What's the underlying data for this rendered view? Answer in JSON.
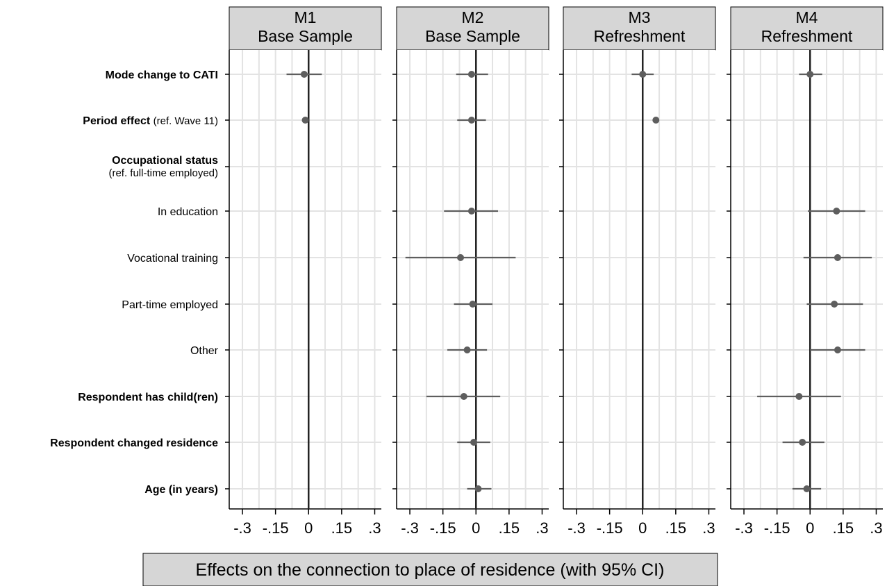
{
  "chart_data": {
    "type": "scatter",
    "subtype": "coefficient plot with 95% CI",
    "x_axis_label": "Effects on the connection to place of residence (with 95% CI)",
    "xlim": [
      -0.36,
      0.33
    ],
    "x_ticks": [
      -0.3,
      -0.15,
      0,
      0.15,
      0.3
    ],
    "x_tick_labels": [
      "-.3",
      "-.15",
      "0",
      ".15",
      ".3"
    ],
    "x_gridlines": [
      -0.3,
      -0.225,
      -0.15,
      -0.075,
      0.075,
      0.15,
      0.225,
      0.3
    ],
    "reference_line": 0,
    "grid": true,
    "rows": [
      {
        "label": "Mode change to CATI",
        "bold": true
      },
      {
        "label": "Period effect",
        "suffix": "(ref. Wave 11)",
        "bold": true
      },
      {
        "label": "Occupational status",
        "subtitle": "(ref. full-time employed)",
        "bold": true,
        "header": true
      },
      {
        "label": "In education",
        "bold": false
      },
      {
        "label": "Vocational training",
        "bold": false
      },
      {
        "label": "Part-time employed",
        "bold": false
      },
      {
        "label": "Other",
        "bold": false
      },
      {
        "label": "Respondent has child(ren)",
        "bold": true
      },
      {
        "label": "Respondent changed residence",
        "bold": true
      },
      {
        "label": "Age (in years)",
        "bold": true
      }
    ],
    "panels": [
      {
        "title_line1": "M1",
        "title_line2": "Base Sample",
        "estimates": [
          {
            "row": 0,
            "est": -0.02,
            "lo": -0.1,
            "hi": 0.06
          },
          {
            "row": 1,
            "est": -0.015,
            "lo": -0.02,
            "hi": -0.01
          }
        ]
      },
      {
        "title_line1": "M2",
        "title_line2": "Base Sample",
        "estimates": [
          {
            "row": 0,
            "est": -0.02,
            "lo": -0.09,
            "hi": 0.055
          },
          {
            "row": 1,
            "est": -0.02,
            "lo": -0.085,
            "hi": 0.045
          },
          {
            "row": 3,
            "est": -0.02,
            "lo": -0.145,
            "hi": 0.1
          },
          {
            "row": 4,
            "est": -0.07,
            "lo": -0.32,
            "hi": 0.18
          },
          {
            "row": 5,
            "est": -0.015,
            "lo": -0.1,
            "hi": 0.075
          },
          {
            "row": 6,
            "est": -0.04,
            "lo": -0.13,
            "hi": 0.05
          },
          {
            "row": 7,
            "est": -0.055,
            "lo": -0.225,
            "hi": 0.11
          },
          {
            "row": 8,
            "est": -0.01,
            "lo": -0.085,
            "hi": 0.065
          },
          {
            "row": 9,
            "est": 0.01,
            "lo": -0.04,
            "hi": 0.07
          }
        ]
      },
      {
        "title_line1": "M3",
        "title_line2": "Refreshment",
        "estimates": [
          {
            "row": 0,
            "est": 0.0,
            "lo": -0.05,
            "hi": 0.05
          },
          {
            "row": 1,
            "est": 0.06,
            "lo": 0.045,
            "hi": 0.075
          }
        ]
      },
      {
        "title_line1": "M4",
        "title_line2": "Refreshment",
        "estimates": [
          {
            "row": 0,
            "est": 0.0,
            "lo": -0.05,
            "hi": 0.055
          },
          {
            "row": 3,
            "est": 0.12,
            "lo": -0.01,
            "hi": 0.25
          },
          {
            "row": 4,
            "est": 0.125,
            "lo": -0.03,
            "hi": 0.28
          },
          {
            "row": 5,
            "est": 0.11,
            "lo": -0.015,
            "hi": 0.24
          },
          {
            "row": 6,
            "est": 0.125,
            "lo": 0.0,
            "hi": 0.25
          },
          {
            "row": 7,
            "est": -0.05,
            "lo": -0.24,
            "hi": 0.14
          },
          {
            "row": 8,
            "est": -0.035,
            "lo": -0.125,
            "hi": 0.065
          },
          {
            "row": 9,
            "est": -0.015,
            "lo": -0.08,
            "hi": 0.05
          }
        ]
      }
    ]
  },
  "colors": {
    "header_fill": "#d6d6d6",
    "grid": "#e3e3e3",
    "marker": "#5e5e5e",
    "ci": "#5e5e5e",
    "axis": "#000000",
    "zero_line": "#222222"
  }
}
